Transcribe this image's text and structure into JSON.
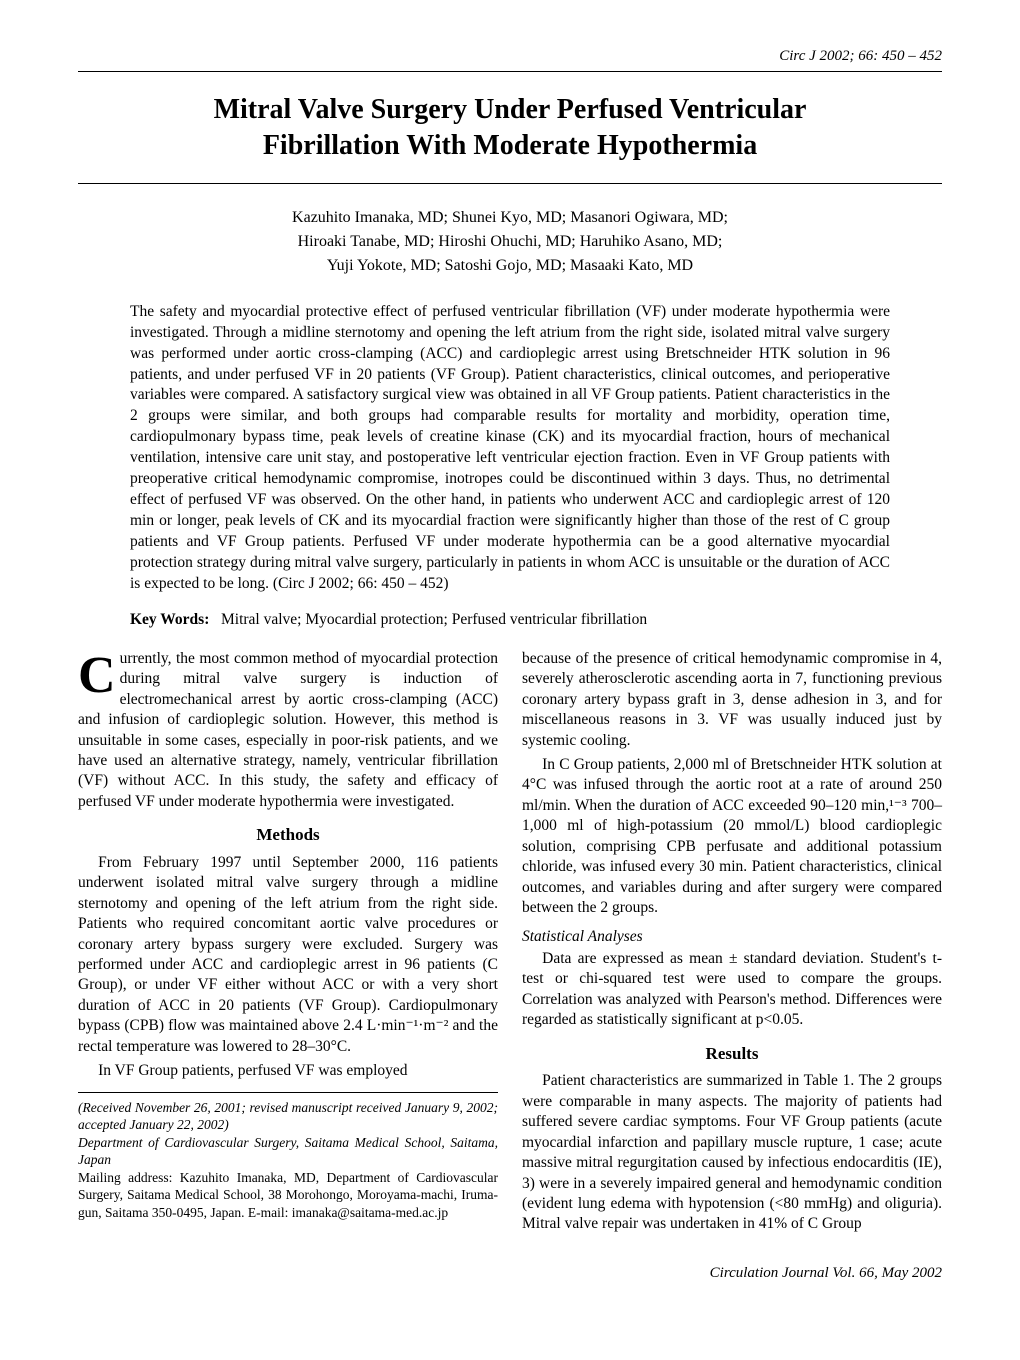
{
  "running_head": "Circ J 2002; 66: 450 – 452",
  "title_line1": "Mitral Valve Surgery Under Perfused Ventricular",
  "title_line2": "Fibrillation With Moderate Hypothermia",
  "authors_line1": "Kazuhito Imanaka, MD; Shunei Kyo, MD; Masanori Ogiwara, MD;",
  "authors_line2": "Hiroaki Tanabe, MD; Hiroshi Ohuchi, MD; Haruhiko Asano, MD;",
  "authors_line3": "Yuji Yokote, MD; Satoshi Gojo, MD; Masaaki Kato, MD",
  "abstract": "The safety and myocardial protective effect of perfused ventricular fibrillation (VF) under moderate hypothermia were investigated. Through a midline sternotomy and opening the left atrium from the right side, isolated mitral valve surgery was performed under aortic cross-clamping (ACC) and cardioplegic arrest using Bretschneider HTK solution in 96 patients, and under perfused VF in 20 patients (VF Group). Patient characteristics, clinical outcomes, and perioperative variables were compared. A satisfactory surgical view was obtained in all VF Group patients. Patient characteristics in the 2 groups were similar, and both groups had comparable results for mortality and morbidity, operation time, cardiopulmonary bypass time, peak levels of creatine kinase (CK) and its myocardial fraction, hours of mechanical ventilation, intensive care unit stay, and postoperative left ventricular ejection fraction. Even in VF Group patients with preoperative critical hemodynamic compromise, inotropes could be discontinued within 3 days. Thus, no detrimental effect of perfused VF was observed. On the other hand, in patients who underwent ACC and cardioplegic arrest of 120 min or longer, peak levels of CK and its myocardial fraction were significantly higher than those of the rest of C group patients and VF Group patients. Perfused VF under moderate hypothermia can be a good alternative myocardial protection strategy during mitral valve surgery, particularly in patients in whom ACC is unsuitable or the duration of ACC is expected to be long.",
  "abstract_citation": "(Circ J 2002; 66: 450 – 452)",
  "keywords_label": "Key Words:",
  "keywords_text": "Mitral valve; Myocardial protection; Perfused ventricular fibrillation",
  "intro_dropcap": "C",
  "intro_p1": "urrently, the most common method of myocardial protection during mitral valve surgery is induction of electromechanical arrest by aortic cross-clamping (ACC) and infusion of cardioplegic solution. However, this method is unsuitable in some cases, especially in poor-risk patients, and we have used an alternative strategy, namely, ventricular fibrillation (VF) without ACC. In this study, the safety and efficacy of perfused VF under moderate hypothermia were investigated.",
  "methods_head": "Methods",
  "methods_p1": "From February 1997 until September 2000, 116 patients underwent isolated mitral valve surgery through a midline sternotomy and opening of the left atrium from the right side. Patients who required concomitant aortic valve procedures or coronary artery bypass surgery were excluded. Surgery was performed under ACC and cardioplegic arrest in 96 patients (C Group), or under VF either without ACC or with a very short duration of ACC in 20 patients (VF Group). Cardiopulmonary bypass (CPB) flow was maintained above 2.4 L·min⁻¹·m⁻² and the rectal temperature was lowered to 28–30°C.",
  "methods_p2": "In VF Group patients, perfused VF was employed",
  "footnote_received": "(Received November 26, 2001; revised manuscript received January 9, 2002; accepted January 22, 2002)",
  "footnote_dept": "Department of Cardiovascular Surgery, Saitama Medical School, Saitama, Japan",
  "footnote_mailing": "Mailing address:  Kazuhito Imanaka, MD, Department of Cardiovascular Surgery, Saitama Medical School, 38 Morohongo, Moroyama-machi, Iruma-gun, Saitama 350-0495, Japan.    E-mail: imanaka@saitama-med.ac.jp",
  "col2_p1": "because of the presence of critical hemodynamic compromise in 4, severely atherosclerotic ascending aorta in 7, functioning previous coronary artery bypass graft in 3, dense adhesion in 3, and for miscellaneous reasons in 3. VF was usually induced just by systemic cooling.",
  "col2_p2": "In C Group patients, 2,000 ml of Bretschneider HTK solution at 4°C was infused through the aortic root at a rate of around 250 ml/min. When the duration of ACC exceeded 90–120 min,¹⁻³ 700–1,000 ml of high-potassium (20 mmol/L) blood cardioplegic solution, comprising CPB perfusate and additional potassium chloride, was infused every 30 min. Patient characteristics, clinical outcomes, and variables during and after surgery were compared between the 2 groups.",
  "stat_head": "Statistical Analyses",
  "stat_p1": "Data are expressed as mean ± standard deviation. Student's t-test or chi-squared test were used to compare the groups. Correlation was analyzed with Pearson's method. Differences were regarded as statistically significant at p<0.05.",
  "results_head": "Results",
  "results_p1": "Patient characteristics are summarized in Table 1. The 2 groups were comparable in many aspects. The majority of patients had suffered severe cardiac symptoms. Four VF Group patients (acute myocardial infarction and papillary muscle rupture, 1 case; acute massive mitral regurgitation caused by infectious endocarditis (IE), 3) were in a severely impaired general and hemodynamic condition (evident lung edema with hypotension (<80 mmHg) and oliguria). Mitral valve repair was undertaken in 41% of C Group",
  "footer": "Circulation Journal   Vol. 66, May 2002"
}
